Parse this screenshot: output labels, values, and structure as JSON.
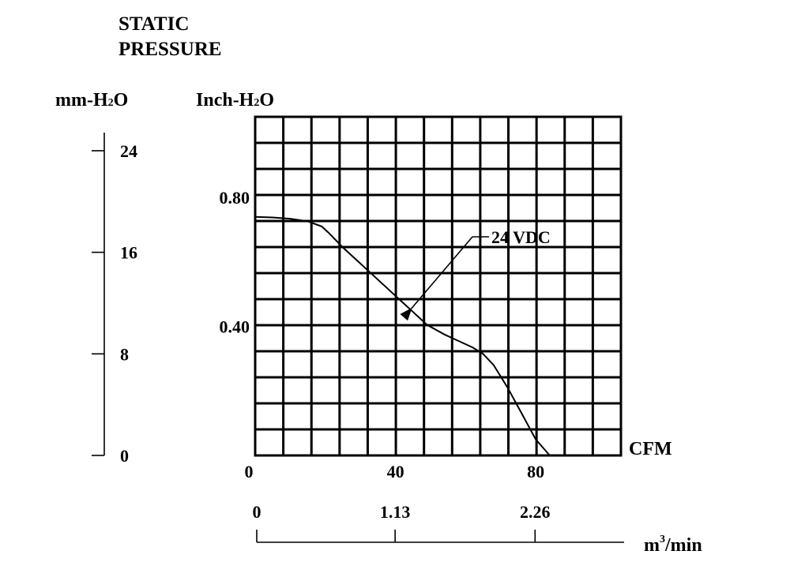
{
  "chart_data": {
    "type": "line",
    "title_line1": "STATIC",
    "title_line2": "PRESSURE",
    "ylabel_mm": {
      "main": "mm-H",
      "sub": "2",
      "tail": "O"
    },
    "ylabel_inch": {
      "main": "Inch-H",
      "sub": "2",
      "tail": "O"
    },
    "xlabel": "CFM",
    "xlabel_m3": {
      "main": "m",
      "sup": "3",
      "tail": "/min"
    },
    "xlim": [
      0,
      104.3
    ],
    "ylim": [
      0,
      1.05
    ],
    "grid": true,
    "x_ticks": [
      {
        "value": 0,
        "label": "0"
      },
      {
        "value": 40,
        "label": "40"
      },
      {
        "value": 80,
        "label": "80"
      }
    ],
    "y_ticks_inch": [
      {
        "value": 0.8,
        "label": "0.80"
      },
      {
        "value": 0.4,
        "label": "0.40"
      }
    ],
    "y_ticks_mm": [
      {
        "value": 0,
        "label": "0"
      },
      {
        "value": 8,
        "label": "8"
      },
      {
        "value": 16,
        "label": "16"
      },
      {
        "value": 24,
        "label": "24"
      }
    ],
    "x_ticks_m3": [
      {
        "value": 0,
        "label": "0"
      },
      {
        "value": 1.13,
        "label": "1.13"
      },
      {
        "value": 2.26,
        "label": "2.26"
      }
    ],
    "series": [
      {
        "name": "24 VDC",
        "x": [
          0,
          5,
          10,
          15,
          19,
          21,
          25,
          30,
          35,
          40,
          45,
          49,
          54,
          58,
          62,
          65,
          68,
          72,
          76,
          80,
          84
        ],
        "y": [
          0.74,
          0.738,
          0.734,
          0.726,
          0.71,
          0.69,
          0.645,
          0.595,
          0.545,
          0.495,
          0.445,
          0.405,
          0.375,
          0.355,
          0.335,
          0.315,
          0.28,
          0.21,
          0.13,
          0.05,
          0.0
        ]
      }
    ],
    "annotation": {
      "text": "24 VDC",
      "series": 0,
      "x": 44.5,
      "y": 0.45
    }
  }
}
